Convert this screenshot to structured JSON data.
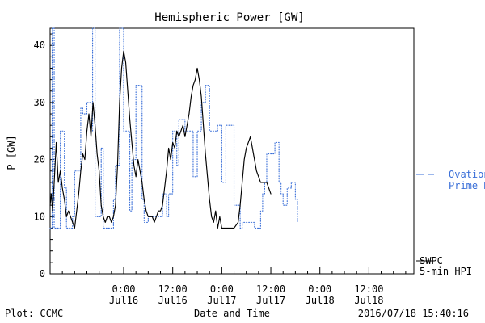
{
  "chart_data": {
    "type": "line",
    "title": "Hemispheric Power [GW]",
    "xlabel": "Date and Time",
    "ylabel": "P [GW]",
    "ylim": [
      0,
      43
    ],
    "xlim": [
      0,
      89
    ],
    "grid": false,
    "y_ticks": [
      0,
      10,
      20,
      30,
      40
    ],
    "x_ticks": [
      {
        "value": 18,
        "label_top": "0:00",
        "label_bottom": "Jul16"
      },
      {
        "value": 30,
        "label_top": "12:00",
        "label_bottom": "Jul16"
      },
      {
        "value": 42,
        "label_top": "0:00",
        "label_bottom": "Jul17"
      },
      {
        "value": 54,
        "label_top": "12:00",
        "label_bottom": "Jul17"
      },
      {
        "value": 66,
        "label_top": "0:00",
        "label_bottom": "Jul18"
      },
      {
        "value": 78,
        "label_top": "12:00",
        "label_bottom": "Jul18"
      }
    ],
    "series": [
      {
        "name": "Ovation Prime HPI",
        "color": "#3a6fd8",
        "style": "dotted-step",
        "points": [
          [
            0,
            8
          ],
          [
            0.5,
            43
          ],
          [
            1,
            8
          ],
          [
            2,
            8
          ],
          [
            2.5,
            25
          ],
          [
            3,
            25
          ],
          [
            3.5,
            15
          ],
          [
            4,
            8
          ],
          [
            5,
            8
          ],
          [
            5.5,
            10
          ],
          [
            6,
            18
          ],
          [
            7,
            18
          ],
          [
            7.5,
            29
          ],
          [
            8,
            28
          ],
          [
            9,
            30
          ],
          [
            10,
            25
          ],
          [
            10.4,
            43
          ],
          [
            11,
            10
          ],
          [
            12,
            10
          ],
          [
            12.5,
            22
          ],
          [
            13,
            8
          ],
          [
            14,
            8
          ],
          [
            15,
            8
          ],
          [
            15.5,
            13
          ],
          [
            16,
            19
          ],
          [
            17,
            43
          ],
          [
            18,
            25
          ],
          [
            19,
            25
          ],
          [
            19.5,
            11
          ],
          [
            20,
            20
          ],
          [
            21,
            33
          ],
          [
            22,
            33
          ],
          [
            22.5,
            13
          ],
          [
            23,
            9
          ],
          [
            24,
            10
          ],
          [
            25,
            10
          ],
          [
            26,
            10
          ],
          [
            27,
            10
          ],
          [
            27.5,
            14
          ],
          [
            28,
            14
          ],
          [
            28.5,
            10
          ],
          [
            29,
            14
          ],
          [
            30,
            25
          ],
          [
            31,
            19
          ],
          [
            31.5,
            27
          ],
          [
            32,
            27
          ],
          [
            33,
            25
          ],
          [
            34,
            25
          ],
          [
            35,
            17
          ],
          [
            36,
            25
          ],
          [
            37,
            30
          ],
          [
            38,
            33
          ],
          [
            38.5,
            33
          ],
          [
            39,
            25
          ],
          [
            40,
            25
          ],
          [
            41,
            26
          ],
          [
            42,
            16
          ],
          [
            43,
            26
          ],
          [
            44,
            26
          ],
          [
            45,
            12
          ],
          [
            46,
            12
          ],
          [
            46.5,
            8
          ],
          [
            47,
            9
          ],
          [
            48,
            9
          ],
          [
            49,
            9
          ],
          [
            50,
            8
          ],
          [
            51,
            8
          ],
          [
            51.5,
            11
          ],
          [
            52,
            14
          ],
          [
            52.5,
            16
          ],
          [
            53,
            21
          ],
          [
            54,
            21
          ],
          [
            55,
            23
          ],
          [
            56,
            16
          ],
          [
            56.5,
            14
          ],
          [
            57,
            12
          ],
          [
            58,
            15
          ],
          [
            59,
            16
          ],
          [
            60,
            13
          ],
          [
            60.5,
            9
          ]
        ]
      },
      {
        "name": "SWPC 5-min HPI",
        "color": "#000000",
        "style": "solid",
        "points": [
          [
            0,
            12
          ],
          [
            0.3,
            14
          ],
          [
            0.6,
            11
          ],
          [
            1,
            16
          ],
          [
            1.5,
            23
          ],
          [
            2,
            16
          ],
          [
            2.5,
            18
          ],
          [
            3,
            15
          ],
          [
            3.5,
            13
          ],
          [
            4,
            10
          ],
          [
            4.5,
            11
          ],
          [
            5,
            10
          ],
          [
            5.5,
            9
          ],
          [
            6,
            8
          ],
          [
            6.5,
            11
          ],
          [
            7,
            14
          ],
          [
            7.5,
            18
          ],
          [
            8,
            21
          ],
          [
            8.5,
            20
          ],
          [
            9,
            25
          ],
          [
            9.5,
            28
          ],
          [
            10,
            24
          ],
          [
            10.5,
            30
          ],
          [
            11,
            26
          ],
          [
            11.5,
            21
          ],
          [
            12,
            18
          ],
          [
            12.5,
            12
          ],
          [
            13,
            10
          ],
          [
            13.5,
            9
          ],
          [
            14,
            10
          ],
          [
            14.5,
            10
          ],
          [
            15,
            9
          ],
          [
            15.5,
            10
          ],
          [
            16,
            12
          ],
          [
            16.5,
            19
          ],
          [
            17,
            30
          ],
          [
            17.5,
            36
          ],
          [
            18,
            39
          ],
          [
            18.5,
            37
          ],
          [
            19,
            32
          ],
          [
            19.5,
            27
          ],
          [
            20,
            23
          ],
          [
            20.5,
            19
          ],
          [
            21,
            17
          ],
          [
            21.5,
            20
          ],
          [
            22,
            18
          ],
          [
            22.5,
            16
          ],
          [
            23,
            13
          ],
          [
            23.5,
            11
          ],
          [
            24,
            10
          ],
          [
            25,
            10
          ],
          [
            25.5,
            9
          ],
          [
            26,
            10
          ],
          [
            26.5,
            11
          ],
          [
            27,
            11
          ],
          [
            27.5,
            12
          ],
          [
            28,
            15
          ],
          [
            28.5,
            18
          ],
          [
            29,
            22
          ],
          [
            29.5,
            20
          ],
          [
            30,
            23
          ],
          [
            30.5,
            22
          ],
          [
            31,
            25
          ],
          [
            31.5,
            24
          ],
          [
            32,
            25
          ],
          [
            32.5,
            26
          ],
          [
            33,
            24
          ],
          [
            33.5,
            26
          ],
          [
            34,
            28
          ],
          [
            34.5,
            31
          ],
          [
            35,
            33
          ],
          [
            35.5,
            34
          ],
          [
            36,
            36
          ],
          [
            36.5,
            34
          ],
          [
            37,
            31
          ],
          [
            37.5,
            26
          ],
          [
            38,
            21
          ],
          [
            38.5,
            17
          ],
          [
            39,
            13
          ],
          [
            39.5,
            10
          ],
          [
            40,
            9
          ],
          [
            40.5,
            11
          ],
          [
            41,
            8
          ],
          [
            41.5,
            10
          ],
          [
            42,
            8
          ],
          [
            43,
            8
          ],
          [
            44,
            8
          ],
          [
            45,
            8
          ],
          [
            46,
            9
          ],
          [
            46.5,
            12
          ],
          [
            47,
            16
          ],
          [
            47.5,
            20
          ],
          [
            48,
            22
          ],
          [
            48.5,
            23
          ],
          [
            49,
            24
          ],
          [
            49.5,
            22
          ],
          [
            50,
            20
          ],
          [
            50.5,
            18
          ],
          [
            51,
            17
          ],
          [
            51.5,
            16
          ],
          [
            52,
            16
          ],
          [
            53,
            16
          ],
          [
            53.5,
            15
          ],
          [
            54,
            14
          ]
        ]
      }
    ],
    "legend": [
      {
        "series": "Ovation Prime HPI",
        "lines": [
          "Ovation",
          "Prime HPI"
        ],
        "position": "right-middle",
        "marker": "dash"
      },
      {
        "series": "SWPC 5-min HPI",
        "lines": [
          "SWPC",
          "5-min HPI"
        ],
        "position": "right-bottom",
        "marker": "line"
      }
    ],
    "footer": {
      "left": "Plot: CCMC",
      "right": "2016/07/18 15:40:16"
    }
  }
}
